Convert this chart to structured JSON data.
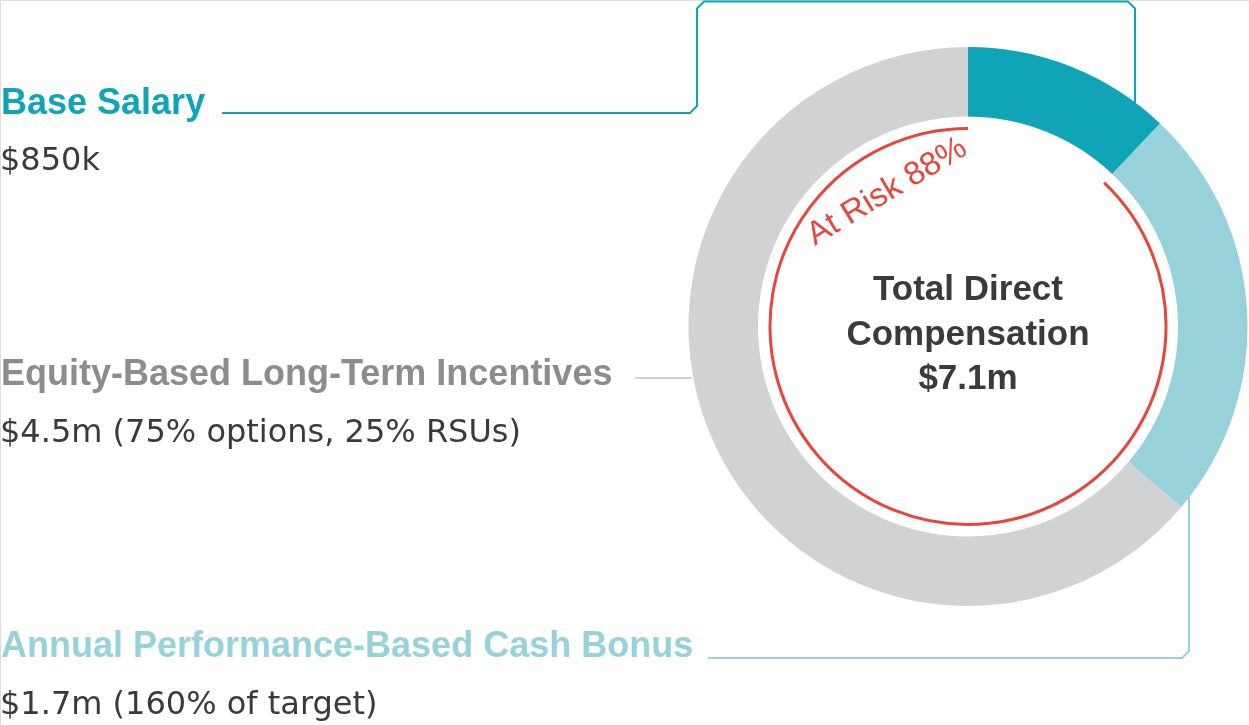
{
  "chart_data": {
    "type": "donut",
    "title": "Total Direct Compensation",
    "categories": [
      "Base Salary",
      "Annual Performance-Based Cash Bonus",
      "Equity-Based Long-Term Incentives"
    ],
    "values": [
      850000,
      1700000,
      4500000
    ],
    "colors": [
      "#10a5b6",
      "#97d1da",
      "#d1d2d4"
    ],
    "value_labels": [
      "$850k",
      "$1.7m (160% of target)",
      "$4.5m (75% options, 25% RSUs)"
    ],
    "annotations": [
      "$7.1m",
      "At Risk 88%"
    ]
  }
}
